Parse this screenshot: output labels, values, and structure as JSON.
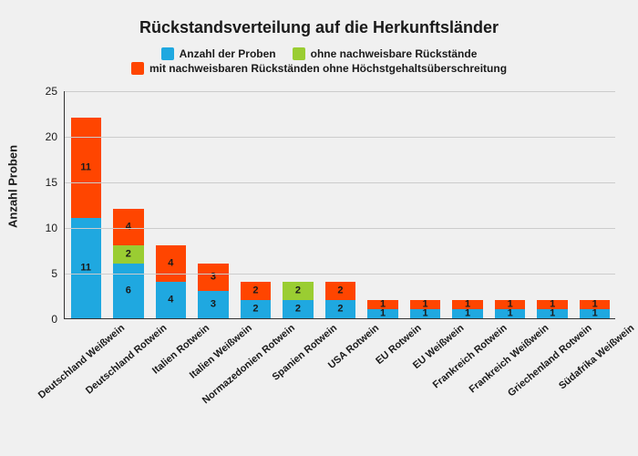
{
  "chart": {
    "type": "stacked-bar",
    "title": "Rückstandsverteilung auf die Herkunftsländer",
    "title_fontsize": 18,
    "ylabel": "Anzahl Proben",
    "ylabel_fontsize": 13,
    "xlabel_fontsize": 11,
    "legend_fontsize": 12,
    "ylim": [
      0,
      25
    ],
    "ytick_step": 5,
    "yticks": [
      0,
      5,
      10,
      15,
      20,
      25
    ],
    "background_color": "#f0f0f0",
    "grid_color": "#cccccc",
    "axis_color": "#333333",
    "text_color": "#1a1a1a",
    "bar_width_ratio": 0.72,
    "series": [
      {
        "key": "proben",
        "label": "Anzahl der Proben",
        "color": "#1fa8e0"
      },
      {
        "key": "ohne",
        "label": "ohne nachweisbare Rückstände",
        "color": "#9acd32"
      },
      {
        "key": "mit",
        "label": "mit nachweisbaren Rückständen ohne Höchstgehaltsüberschreitung",
        "color": "#ff4500"
      }
    ],
    "legend_layout": [
      [
        "proben",
        "ohne"
      ],
      [
        "mit"
      ]
    ],
    "categories": [
      "Deutschland Weißwein",
      "Deutschland Rotwein",
      "Italien Rotwein",
      "Italien Weißwein",
      "Normazedonien Rotwein",
      "Spanien Rotwein",
      "USA Rotwein",
      "EU Rotwein",
      "EU Weißwein",
      "Frankreich Rotwein",
      "Frankreich Weißwein",
      "Griechenland Rotwein",
      "Südafrika Weißwein"
    ],
    "values": {
      "proben": [
        11,
        6,
        4,
        3,
        2,
        2,
        2,
        1,
        1,
        1,
        1,
        1,
        1
      ],
      "ohne": [
        0,
        2,
        0,
        0,
        0,
        2,
        0,
        0,
        0,
        0,
        0,
        0,
        0
      ],
      "mit": [
        11,
        4,
        4,
        3,
        2,
        0,
        2,
        1,
        1,
        1,
        1,
        1,
        1
      ]
    }
  }
}
